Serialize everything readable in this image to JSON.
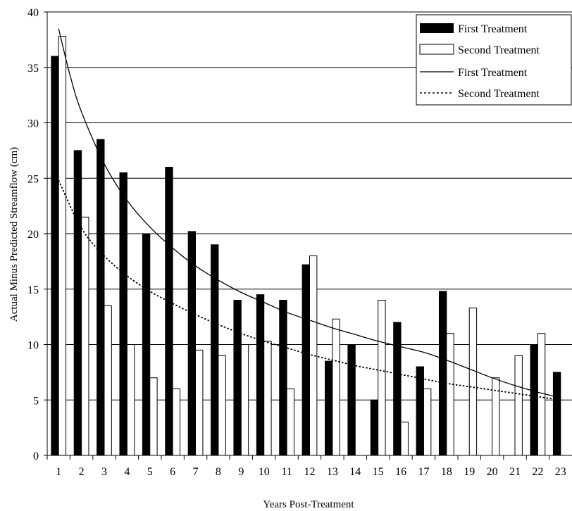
{
  "chart_data": {
    "type": "bar",
    "xlabel": "Years Post-Treatment",
    "ylabel": "Actual Minus Predicted Streamflow (cm)",
    "ylim": [
      0,
      40
    ],
    "yticks": [
      0,
      5,
      10,
      15,
      20,
      25,
      30,
      35,
      40
    ],
    "categories": [
      "1",
      "2",
      "3",
      "4",
      "5",
      "6",
      "7",
      "8",
      "9",
      "10",
      "11",
      "12",
      "13",
      "14",
      "15",
      "16",
      "17",
      "18",
      "19",
      "20",
      "21",
      "22",
      "23"
    ],
    "series": [
      {
        "name": "First Treatment",
        "kind": "bar",
        "color": "#000000",
        "values": [
          36.0,
          27.5,
          28.5,
          25.5,
          20.0,
          26.0,
          20.2,
          19.0,
          14.0,
          14.5,
          14.0,
          17.2,
          8.5,
          10.0,
          5.0,
          12.0,
          8.0,
          14.8,
          null,
          null,
          null,
          10.0,
          7.5
        ]
      },
      {
        "name": "Second Treatment",
        "kind": "bar",
        "color": "#ffffff",
        "values": [
          37.8,
          21.5,
          13.5,
          10.0,
          7.0,
          6.0,
          9.5,
          9.0,
          10.0,
          10.3,
          6.0,
          18.0,
          12.3,
          null,
          14.0,
          3.0,
          6.0,
          11.0,
          13.3,
          7.0,
          9.0,
          11.0,
          null
        ]
      },
      {
        "name": "First Treatment",
        "kind": "line",
        "style": "solid",
        "x": [
          1,
          1.5,
          2,
          3,
          4,
          5,
          6,
          7,
          8,
          9,
          10,
          11,
          12,
          13,
          14,
          15,
          16,
          17,
          18,
          19,
          20,
          21,
          22,
          23
        ],
        "values": [
          38.5,
          34.3,
          31.0,
          26.3,
          23.0,
          20.6,
          18.7,
          17.1,
          15.8,
          14.7,
          13.8,
          12.9,
          12.2,
          11.5,
          10.9,
          10.3,
          9.8,
          9.3,
          8.6,
          7.8,
          7.0,
          6.3,
          5.7,
          5.2
        ]
      },
      {
        "name": "Second Treatment",
        "kind": "line",
        "style": "dotted",
        "x": [
          1,
          2,
          3,
          4,
          5,
          6,
          7,
          8,
          9,
          10,
          11,
          12,
          13,
          14,
          15,
          16,
          17,
          18,
          19,
          20,
          21,
          22,
          23
        ],
        "values": [
          24.8,
          20.5,
          18.0,
          16.2,
          14.8,
          13.7,
          12.7,
          11.8,
          11.0,
          10.3,
          9.7,
          9.1,
          8.6,
          8.1,
          7.7,
          7.3,
          6.9,
          6.5,
          6.2,
          5.9,
          5.6,
          5.3,
          5.0
        ]
      }
    ],
    "legend": {
      "placement": "top-right",
      "entries": [
        "First Treatment",
        "Second Treatment",
        "First Treatment",
        "Second Treatment"
      ]
    },
    "grid": "horizontal"
  }
}
